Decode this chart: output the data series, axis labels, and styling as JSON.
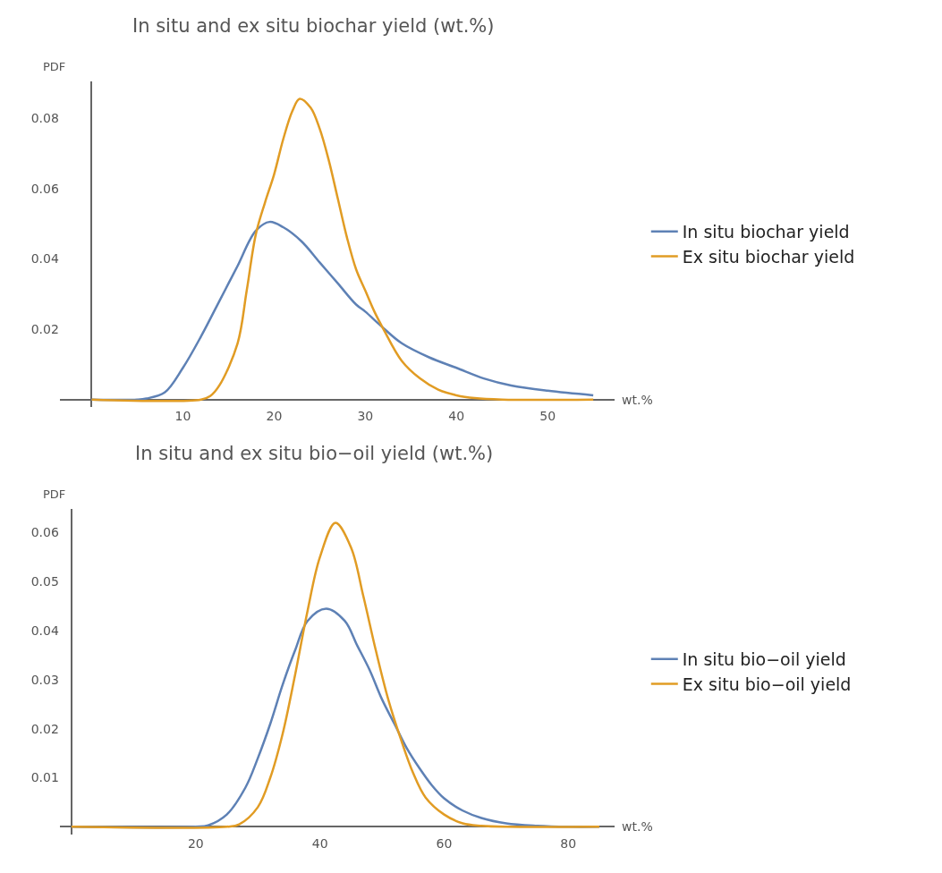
{
  "chart_data": [
    {
      "type": "line",
      "title": "In situ and ex situ biochar yield (wt.%)",
      "xlabel": "wt.%",
      "ylabel": "PDF",
      "xlim": [
        -3.5,
        57.3
      ],
      "ylim": [
        -0.002,
        0.0904
      ],
      "xticks": [
        10,
        20,
        30,
        40,
        50
      ],
      "yticks": [
        0.02,
        0.04,
        0.06,
        0.08
      ],
      "legend": "right",
      "line_style": "solid",
      "series": [
        {
          "name": "In situ biochar yield",
          "color": "#5e81b5",
          "x": [
            0,
            5,
            6,
            8,
            10,
            12,
            14,
            15,
            16,
            18,
            19.5,
            21,
            23,
            25,
            27,
            29,
            30,
            31.7,
            34,
            37,
            40,
            43,
            46,
            50,
            55
          ],
          "values": [
            0,
            0,
            0.0003,
            0.002,
            0.009,
            0.018,
            0.028,
            0.033,
            0.038,
            0.048,
            0.0505,
            0.049,
            0.045,
            0.039,
            0.033,
            0.027,
            0.025,
            0.021,
            0.016,
            0.012,
            0.009,
            0.006,
            0.004,
            0.0025,
            0.0012
          ]
        },
        {
          "name": "Ex situ biochar yield",
          "color": "#e19c24",
          "x": [
            0,
            12,
            13,
            14,
            16,
            17,
            18,
            19,
            20,
            21,
            22,
            22.8,
            24,
            25,
            26,
            27,
            28,
            29,
            30,
            31,
            32,
            34,
            36,
            38,
            40,
            42,
            45,
            55
          ],
          "values": [
            0,
            0,
            0.001,
            0.004,
            0.016,
            0.031,
            0.047,
            0.056,
            0.064,
            0.074,
            0.082,
            0.0855,
            0.083,
            0.077,
            0.068,
            0.057,
            0.046,
            0.037,
            0.031,
            0.025,
            0.02,
            0.011,
            0.006,
            0.0028,
            0.0012,
            0.0004,
            0,
            0
          ]
        }
      ]
    },
    {
      "type": "line",
      "title": "In situ and ex situ bio−oil yield (wt.%)",
      "xlabel": "wt.%",
      "ylabel": "PDF",
      "xlim": [
        -1.9,
        87.4
      ],
      "ylim": [
        -0.0015,
        0.0648
      ],
      "xticks": [
        20,
        40,
        60,
        80
      ],
      "yticks": [
        0.01,
        0.02,
        0.03,
        0.04,
        0.05,
        0.06
      ],
      "legend": "right",
      "line_style": "solid",
      "series": [
        {
          "name": "In situ bio−oil yield",
          "color": "#5e81b5",
          "x": [
            0,
            20,
            22,
            25,
            28,
            30,
            32,
            34,
            36,
            38,
            41,
            44,
            46,
            48,
            50,
            52,
            54,
            56,
            58,
            60,
            63,
            66,
            70,
            75,
            80,
            85
          ],
          "values": [
            0,
            0,
            0.0003,
            0.0025,
            0.008,
            0.014,
            0.021,
            0.029,
            0.036,
            0.042,
            0.0445,
            0.042,
            0.037,
            0.032,
            0.026,
            0.021,
            0.016,
            0.012,
            0.0085,
            0.0058,
            0.0033,
            0.0018,
            0.0007,
            0.0002,
            0,
            0
          ]
        },
        {
          "name": "Ex situ bio−oil yield",
          "color": "#e19c24",
          "x": [
            0,
            25,
            27,
            30,
            32,
            34,
            36,
            38,
            40,
            42.5,
            45,
            47,
            49,
            51,
            53,
            55,
            57,
            60,
            63,
            66,
            70,
            85
          ],
          "values": [
            0,
            0,
            0.0005,
            0.004,
            0.01,
            0.019,
            0.031,
            0.044,
            0.055,
            0.062,
            0.057,
            0.047,
            0.036,
            0.026,
            0.018,
            0.011,
            0.006,
            0.0025,
            0.0007,
            0.0002,
            0,
            0
          ]
        }
      ]
    }
  ]
}
